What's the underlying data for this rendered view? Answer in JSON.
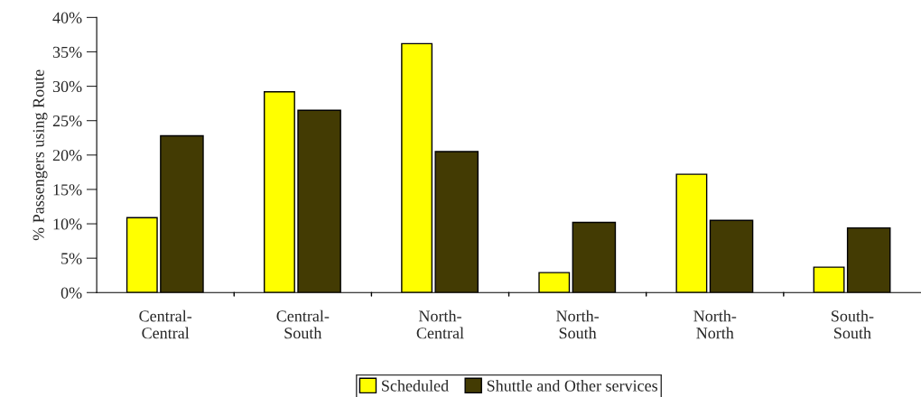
{
  "chart_data": {
    "type": "bar",
    "ylabel": "% Passengers using Route",
    "categories": [
      "Central-\nCentral",
      "Central-\nSouth",
      "North-\nCentral",
      "North-\nSouth",
      "North-\nNorth",
      "South-\nSouth"
    ],
    "series": [
      {
        "name": "Scheduled",
        "color": "#ffff00",
        "values": [
          10.9,
          29.2,
          36.2,
          2.9,
          17.2,
          3.7
        ]
      },
      {
        "name": "Shuttle and Other services",
        "color": "#433b03",
        "values": [
          22.8,
          26.5,
          20.5,
          10.2,
          10.5,
          9.4
        ]
      }
    ],
    "ylim": [
      0,
      40
    ],
    "yticks": [
      {
        "value": 0,
        "label": "0%"
      },
      {
        "value": 5,
        "label": "5%"
      },
      {
        "value": 10,
        "label": "10%"
      },
      {
        "value": 15,
        "label": "15%"
      },
      {
        "value": 20,
        "label": "20%"
      },
      {
        "value": 25,
        "label": "25%"
      },
      {
        "value": 30,
        "label": "30%"
      },
      {
        "value": 35,
        "label": "35%"
      },
      {
        "value": 40,
        "label": "40%"
      }
    ],
    "grid": false,
    "legend": "bottom"
  }
}
